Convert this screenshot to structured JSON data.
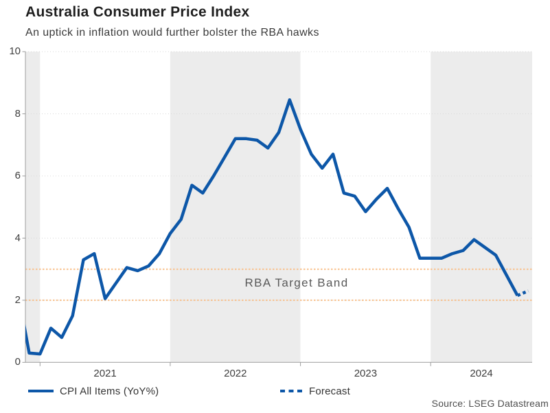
{
  "header": {
    "title": "Australia Consumer Price Index",
    "subtitle": "An uptick in inflation would further bolster the RBA hawks"
  },
  "annotation": {
    "target_band_label": "RBA Target Band"
  },
  "source_note": "Source: LSEG Datastream",
  "legend": [
    {
      "label": "CPI All Items (YoY%)",
      "style": "solid"
    },
    {
      "label": "Forecast",
      "style": "dotted"
    }
  ],
  "colors": {
    "line": "#0d57a8",
    "target_band": "#f8c08c",
    "year_shade": "#ececec",
    "grid": "#d8d8d8",
    "axis": "#9c9c9c",
    "tick_text": "#3e3e3e",
    "annotation_text": "#595959"
  },
  "chart_data": {
    "type": "line",
    "title": "Australia Consumer Price Index",
    "subtitle": "An uptick in inflation would further bolster the RBA hawks",
    "ylabel": "CPI All Items (YoY%)",
    "ylim": [
      0,
      10
    ],
    "yticks": [
      0,
      2,
      4,
      6,
      8,
      10
    ],
    "x_tick_labels": [
      "2021",
      "2022",
      "2023",
      "2024"
    ],
    "grid": "dotted-horizontal",
    "legend_position": "bottom",
    "target_band": {
      "low": 2,
      "high": 3,
      "label": "RBA Target Band"
    },
    "shaded_year_spans": [
      [
        "2020-01",
        "2021-01"
      ],
      [
        "2022-01",
        "2023-01"
      ],
      [
        "2024-01",
        "2025-01"
      ]
    ],
    "series": [
      {
        "name": "CPI All Items (YoY%)",
        "style": "solid",
        "points": [
          [
            "2020-11",
            2.2
          ],
          [
            "2020-12",
            0.3
          ],
          [
            "2021-01",
            0.27
          ],
          [
            "2021-02",
            1.1
          ],
          [
            "2021-03",
            0.8
          ],
          [
            "2021-04",
            1.5
          ],
          [
            "2021-05",
            3.3
          ],
          [
            "2021-06",
            3.5
          ],
          [
            "2021-07",
            2.05
          ],
          [
            "2021-08",
            2.55
          ],
          [
            "2021-09",
            3.05
          ],
          [
            "2021-10",
            2.95
          ],
          [
            "2021-11",
            3.1
          ],
          [
            "2021-12",
            3.5
          ],
          [
            "2022-01",
            4.15
          ],
          [
            "2022-02",
            4.6
          ],
          [
            "2022-03",
            5.7
          ],
          [
            "2022-04",
            5.45
          ],
          [
            "2022-05",
            6.0
          ],
          [
            "2022-06",
            6.6
          ],
          [
            "2022-07",
            7.2
          ],
          [
            "2022-08",
            7.2
          ],
          [
            "2022-09",
            7.15
          ],
          [
            "2022-10",
            6.9
          ],
          [
            "2022-11",
            7.4
          ],
          [
            "2022-12",
            8.45
          ],
          [
            "2023-01",
            7.5
          ],
          [
            "2023-02",
            6.7
          ],
          [
            "2023-03",
            6.25
          ],
          [
            "2023-04",
            6.7
          ],
          [
            "2023-05",
            5.45
          ],
          [
            "2023-06",
            5.35
          ],
          [
            "2023-07",
            4.85
          ],
          [
            "2023-08",
            5.25
          ],
          [
            "2023-09",
            5.6
          ],
          [
            "2023-10",
            4.95
          ],
          [
            "2023-11",
            4.35
          ],
          [
            "2023-12",
            3.35
          ],
          [
            "2024-01",
            3.35
          ],
          [
            "2024-02",
            3.35
          ],
          [
            "2024-03",
            3.5
          ],
          [
            "2024-04",
            3.6
          ],
          [
            "2024-05",
            3.95
          ],
          [
            "2024-06",
            3.7
          ],
          [
            "2024-07",
            3.45
          ],
          [
            "2024-08",
            2.8
          ],
          [
            "2024-09",
            2.15
          ]
        ]
      },
      {
        "name": "Forecast",
        "style": "dotted",
        "points": [
          [
            "2024-09",
            2.15
          ],
          [
            "2024-10",
            2.3
          ]
        ]
      }
    ]
  }
}
